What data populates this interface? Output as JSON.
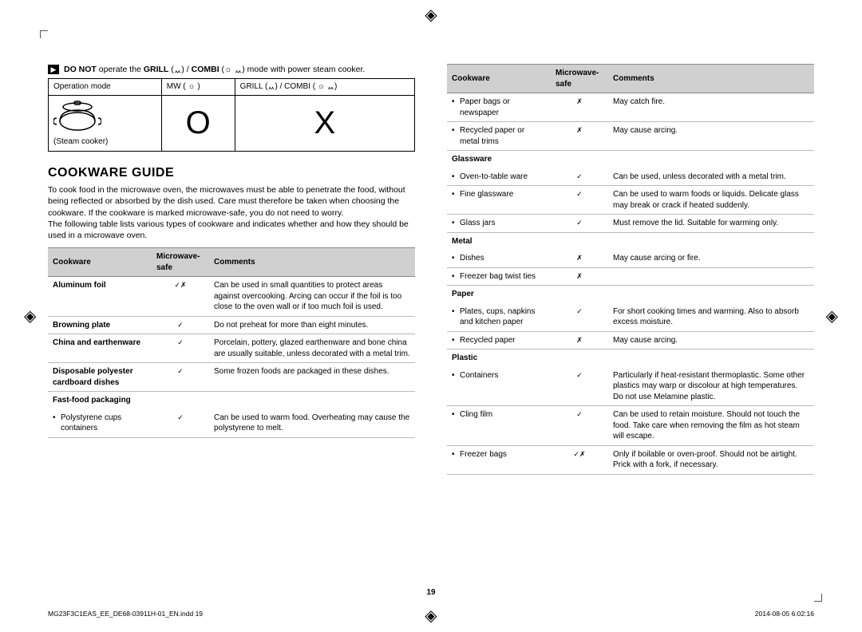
{
  "warning": {
    "prefix": "DO NOT",
    "text1": " operate the ",
    "grill": "GRILL",
    "slash": " (ᆻ) / ",
    "combi": "COMBI",
    "text2": " (☼ ᆻ) mode with power steam cooker."
  },
  "modeTable": {
    "header": [
      "Operation mode",
      "MW ( ☼ )",
      "GRILL (ᆻ) / COMBI ( ☼ ᆻ)"
    ],
    "row2": [
      "(Steam cooker)",
      "O",
      "X"
    ]
  },
  "guide": {
    "title": "COOKWARE GUIDE",
    "intro": "To cook food in the microwave oven, the microwaves must be able to penetrate the food, without being reflected or absorbed by the dish used. Care must therefore be taken when choosing the cookware. If the cookware is marked microwave-safe, you do not need to worry.\nThe following table lists various types of cookware and indicates whether and how they should be used in a microwave oven."
  },
  "headers": {
    "c1": "Cookware",
    "c2": "Microwave-safe",
    "c3": "Comments"
  },
  "leftRows": [
    {
      "type": "bold",
      "c1": "Aluminum foil",
      "c2": "✓✗",
      "c3": "Can be used in small quantities to protect areas against overcooking. Arcing can occur if the foil is too close to the oven wall or if too much foil is used."
    },
    {
      "type": "bold",
      "c1": "Browning plate",
      "c2": "✓",
      "c3": "Do not preheat for more than eight minutes."
    },
    {
      "type": "bold",
      "c1": "China and earthenware",
      "c2": "✓",
      "c3": "Porcelain, pottery, glazed earthenware and bone china are usually suitable, unless decorated with a metal trim."
    },
    {
      "type": "bold",
      "c1": "Disposable polyester cardboard dishes",
      "c2": "✓",
      "c3": "Some frozen foods are packaged in these dishes."
    },
    {
      "type": "section",
      "c1": "Fast-food packaging"
    },
    {
      "type": "bullet",
      "c1": "Polystyrene cups containers",
      "c2": "✓",
      "c3": "Can be used to warm food. Overheating may cause the polystyrene to melt."
    }
  ],
  "rightRows": [
    {
      "type": "bullet",
      "c1": "Paper bags or newspaper",
      "c2": "✗",
      "c3": "May catch fire."
    },
    {
      "type": "bullet",
      "c1": "Recycled paper or metal trims",
      "c2": "✗",
      "c3": "May cause arcing."
    },
    {
      "type": "section",
      "c1": "Glassware"
    },
    {
      "type": "bullet",
      "c1": "Oven-to-table ware",
      "c2": "✓",
      "c3": "Can be used, unless decorated with a metal trim."
    },
    {
      "type": "bullet",
      "c1": "Fine glassware",
      "c2": "✓",
      "c3": "Can be used to warm foods or liquids. Delicate glass may break or crack if heated suddenly."
    },
    {
      "type": "bullet",
      "c1": "Glass jars",
      "c2": "✓",
      "c3": "Must remove the lid. Suitable for warming only."
    },
    {
      "type": "section",
      "c1": "Metal"
    },
    {
      "type": "bullet",
      "c1": "Dishes",
      "c2": "✗",
      "c3": "May cause arcing or fire."
    },
    {
      "type": "bullet",
      "c1": "Freezer bag twist ties",
      "c2": "✗",
      "c3": ""
    },
    {
      "type": "section",
      "c1": "Paper"
    },
    {
      "type": "bullet",
      "c1": "Plates, cups, napkins and kitchen paper",
      "c2": "✓",
      "c3": "For short cooking times and warming. Also to absorb excess moisture."
    },
    {
      "type": "bullet",
      "c1": "Recycled paper",
      "c2": "✗",
      "c3": "May cause arcing."
    },
    {
      "type": "section",
      "c1": "Plastic"
    },
    {
      "type": "bullet",
      "c1": "Containers",
      "c2": "✓",
      "c3": "Particularly if heat-resistant thermoplastic. Some other plastics may warp or discolour at high temperatures. Do not use Melamine plastic."
    },
    {
      "type": "bullet",
      "c1": "Cling film",
      "c2": "✓",
      "c3": "Can be used to retain moisture. Should not touch the food. Take care when removing the film as hot steam will escape."
    },
    {
      "type": "bullet",
      "c1": "Freezer bags",
      "c2": "✓✗",
      "c3": "Only if boilable or oven-proof. Should not be airtight. Prick with a fork, if necessary."
    }
  ],
  "pageNumber": "19",
  "footer": {
    "left": "MG23F3C1EAS_EE_DE68-03911H-01_EN.indd   19",
    "right": "2014-08-05   6:02:16"
  }
}
